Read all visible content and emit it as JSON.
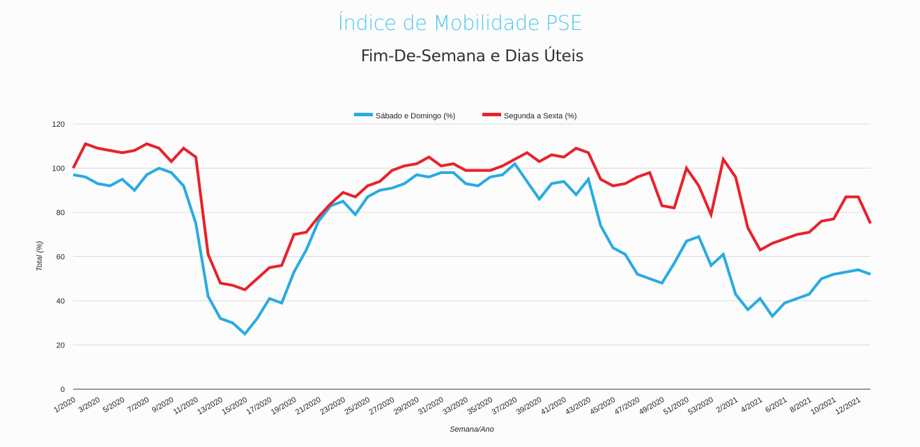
{
  "header": {
    "title": "Índice de Mobilidade PSE",
    "subtitle": "Fim-De-Semana e Dias Úteis"
  },
  "chart_data": {
    "type": "line",
    "title": "Índice de Mobilidade PSE",
    "subtitle": "Fim-De-Semana e Dias Úteis",
    "xlabel": "Semana/Ano",
    "ylabel": "Total (%)",
    "ylim": [
      0,
      120
    ],
    "yticks": [
      0,
      20,
      40,
      60,
      80,
      100,
      120
    ],
    "grid": true,
    "legend_position": "top-center",
    "x": [
      "1/2020",
      "2/2020",
      "3/2020",
      "4/2020",
      "5/2020",
      "6/2020",
      "7/2020",
      "8/2020",
      "9/2020",
      "10/2020",
      "11/2020",
      "12/2020",
      "13/2020",
      "14/2020",
      "15/2020",
      "16/2020",
      "17/2020",
      "18/2020",
      "19/2020",
      "20/2020",
      "21/2020",
      "22/2020",
      "23/2020",
      "24/2020",
      "25/2020",
      "26/2020",
      "27/2020",
      "28/2020",
      "29/2020",
      "30/2020",
      "31/2020",
      "32/2020",
      "33/2020",
      "34/2020",
      "35/2020",
      "36/2020",
      "37/2020",
      "38/2020",
      "39/2020",
      "40/2020",
      "41/2020",
      "42/2020",
      "43/2020",
      "44/2020",
      "45/2020",
      "46/2020",
      "47/2020",
      "48/2020",
      "49/2020",
      "50/2020",
      "51/2020",
      "52/2020",
      "53/2020",
      "1/2021",
      "2/2021",
      "3/2021",
      "4/2021",
      "5/2021",
      "6/2021",
      "7/2021",
      "8/2021",
      "9/2021",
      "10/2021",
      "11/2021",
      "12/2021",
      "13/2021"
    ],
    "tick_labels": [
      "1/2020",
      "3/2020",
      "5/2020",
      "7/2020",
      "9/2020",
      "11/2020",
      "13/2020",
      "15/2020",
      "17/2020",
      "19/2020",
      "21/2020",
      "23/2020",
      "25/2020",
      "27/2020",
      "29/2020",
      "31/2020",
      "33/2020",
      "35/2020",
      "37/2020",
      "39/2020",
      "41/2020",
      "43/2020",
      "45/2020",
      "47/2020",
      "49/2020",
      "51/2020",
      "53/2020",
      "2/2021",
      "4/2021",
      "6/2021",
      "8/2021",
      "10/2021",
      "12/2021"
    ],
    "series": [
      {
        "name": "Sábado e Domingo (%)",
        "color": "#29abe2",
        "values": [
          97,
          96,
          93,
          92,
          95,
          90,
          97,
          100,
          98,
          92,
          75,
          42,
          32,
          30,
          25,
          32,
          41,
          39,
          53,
          63,
          76,
          83,
          85,
          79,
          87,
          90,
          91,
          93,
          97,
          96,
          98,
          98,
          93,
          92,
          96,
          97,
          102,
          94,
          86,
          93,
          94,
          88,
          95,
          74,
          64,
          61,
          52,
          50,
          48,
          57,
          67,
          69,
          56,
          61,
          43,
          36,
          41,
          33,
          39,
          41,
          43,
          50,
          52,
          53,
          54,
          52
        ]
      },
      {
        "name": "Segunda a Sexta (%)",
        "color": "#e8222a",
        "values": [
          100,
          111,
          109,
          108,
          107,
          108,
          111,
          109,
          103,
          109,
          105,
          61,
          48,
          47,
          45,
          50,
          55,
          56,
          70,
          71,
          78,
          84,
          89,
          87,
          92,
          94,
          99,
          101,
          102,
          105,
          101,
          102,
          99,
          99,
          99,
          101,
          104,
          107,
          103,
          106,
          105,
          109,
          107,
          95,
          92,
          93,
          96,
          98,
          83,
          82,
          100,
          92,
          79,
          104,
          96,
          73,
          63,
          66,
          68,
          70,
          71,
          76,
          77,
          87,
          87,
          75
        ]
      }
    ]
  }
}
